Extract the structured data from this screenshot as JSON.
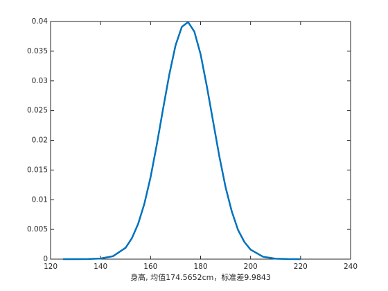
{
  "chart_data": {
    "type": "line",
    "xlabel": "身高, 均值174.5652cm，标准差9.9843",
    "x": [
      125,
      130,
      135,
      140,
      145,
      150,
      152.5,
      155,
      157.5,
      160,
      162.5,
      165,
      167.5,
      170,
      172.5,
      175,
      177.5,
      180,
      182.5,
      185,
      187.5,
      190,
      192.5,
      195,
      197.5,
      200,
      205,
      210,
      215,
      220
    ],
    "series": [
      {
        "color": "#0072bd",
        "values": [
          0,
          0,
          2e-05,
          0.0001,
          0.0005,
          0.0019,
          0.0035,
          0.0059,
          0.0093,
          0.0138,
          0.0193,
          0.0253,
          0.0311,
          0.036,
          0.0391,
          0.0399,
          0.0383,
          0.0345,
          0.0291,
          0.0232,
          0.0173,
          0.0121,
          0.008,
          0.0049,
          0.0029,
          0.0016,
          0.0004,
          7e-05,
          1e-05,
          0
        ]
      }
    ],
    "xlim": [
      120,
      240
    ],
    "xticks": [
      120,
      140,
      160,
      180,
      200,
      220,
      240
    ],
    "ylim": [
      0,
      0.04
    ],
    "yticks": [
      0,
      0.005,
      0.01,
      0.015,
      0.02,
      0.025,
      0.03,
      0.035,
      0.04
    ]
  }
}
